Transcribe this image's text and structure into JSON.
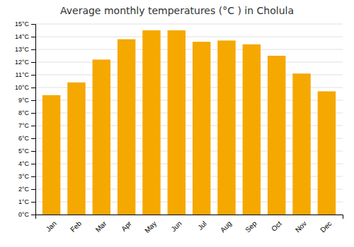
{
  "chart_data": {
    "type": "bar",
    "title": "Average monthly temperatures (°C ) in Cholula",
    "categories": [
      "Jan",
      "Feb",
      "Mar",
      "Apr",
      "May",
      "Jun",
      "Jul",
      "Aug",
      "Sep",
      "Oct",
      "Nov",
      "Dec"
    ],
    "values": [
      9.4,
      10.4,
      12.2,
      13.8,
      14.5,
      14.5,
      13.6,
      13.7,
      13.4,
      12.5,
      11.1,
      9.7
    ],
    "color": "#F5A800",
    "ylim": [
      0,
      15
    ],
    "yticks": [
      {
        "value": 0,
        "label": "0°C"
      },
      {
        "value": 1,
        "label": "1°C"
      },
      {
        "value": 2,
        "label": "2°C"
      },
      {
        "value": 3,
        "label": "3°C"
      },
      {
        "value": 4,
        "label": "4°C"
      },
      {
        "value": 5,
        "label": "5°C"
      },
      {
        "value": 6,
        "label": "6°C"
      },
      {
        "value": 7,
        "label": "7°C"
      },
      {
        "value": 8,
        "label": "8°C"
      },
      {
        "value": 9,
        "label": "9°C"
      },
      {
        "value": 10,
        "label": "10°C"
      },
      {
        "value": 11,
        "label": "11°C"
      },
      {
        "value": 12,
        "label": "12°C"
      },
      {
        "value": 13,
        "label": "13°C"
      },
      {
        "value": 14,
        "label": "14°C"
      },
      {
        "value": 15,
        "label": "15°C"
      }
    ],
    "grid": true
  }
}
